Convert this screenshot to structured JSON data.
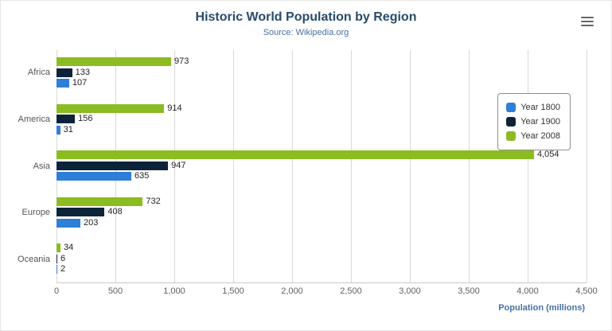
{
  "chart_data": {
    "type": "bar",
    "orientation": "horizontal",
    "title": "Historic World Population by Region",
    "subtitle": "Source: Wikipedia.org",
    "categories": [
      "Africa",
      "America",
      "Asia",
      "Europe",
      "Oceania"
    ],
    "series": [
      {
        "name": "Year 1800",
        "color": "#2f7ed8",
        "values": [
          107,
          31,
          635,
          203,
          2
        ]
      },
      {
        "name": "Year 1900",
        "color": "#0d233a",
        "values": [
          133,
          156,
          947,
          408,
          6
        ]
      },
      {
        "name": "Year 2008",
        "color": "#8bbc21",
        "values": [
          973,
          914,
          4054,
          732,
          34
        ]
      }
    ],
    "xlabel": "Population (millions)",
    "xlim": [
      0,
      4500
    ],
    "tick_interval": 500,
    "tick_labels": [
      "0",
      "500",
      "1,000",
      "1,500",
      "2,000",
      "2,500",
      "3,000",
      "3,500",
      "4,000",
      "4,500"
    ],
    "grid": true,
    "legend_position": "right"
  },
  "colors": {
    "title": "#274b6d",
    "subtitle": "#4572a7",
    "axis_title": "#4572a7"
  },
  "menu_icon": "hamburger-export-menu"
}
